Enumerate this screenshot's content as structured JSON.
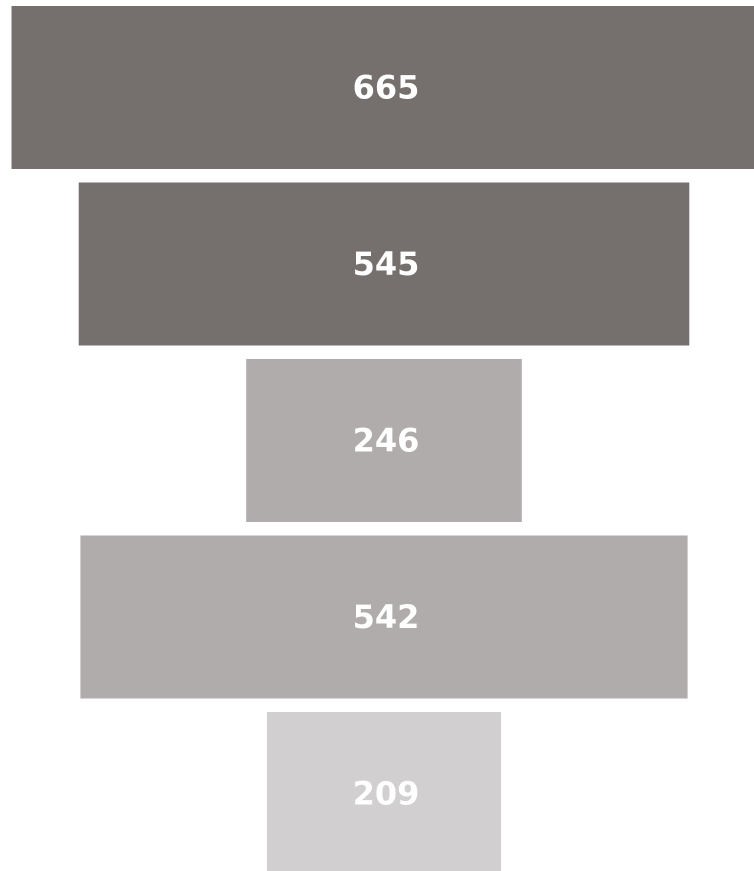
{
  "chart_data": {
    "type": "bar",
    "subtype": "funnel",
    "orientation": "horizontal",
    "title": "",
    "xlabel": "",
    "ylabel": "",
    "values": [
      665,
      545,
      246,
      542,
      209
    ],
    "labels": [
      "665",
      "545",
      "246",
      "542",
      "209"
    ],
    "colors": [
      "#75706e",
      "#75706e",
      "#b0acab",
      "#b0acab",
      "#d1cfd0"
    ],
    "legend": "none",
    "grid": false
  }
}
